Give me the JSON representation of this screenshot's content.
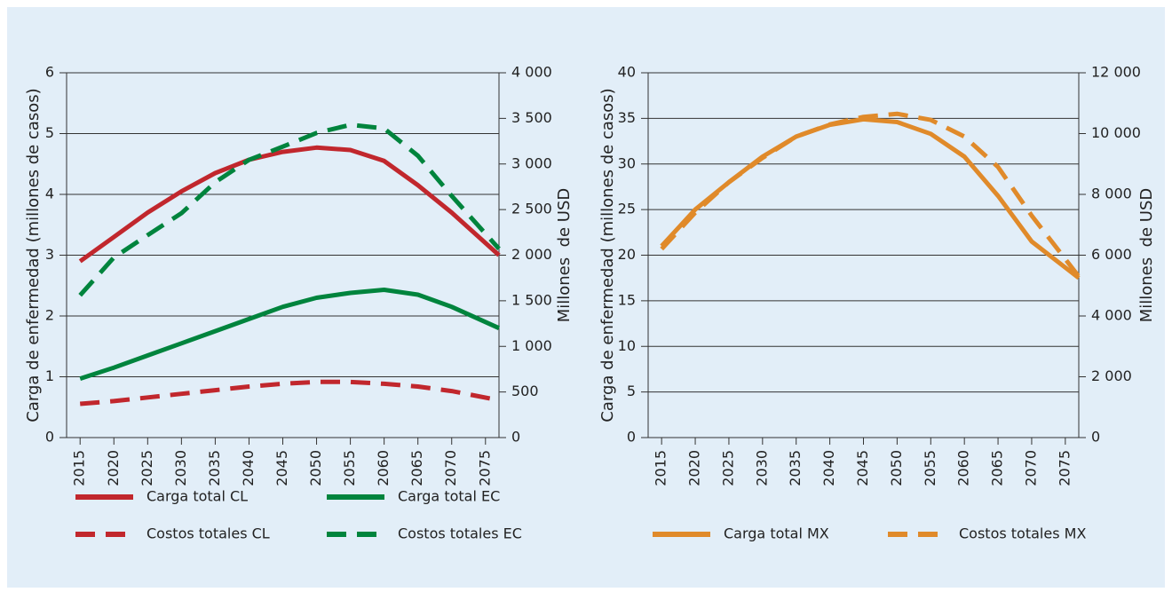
{
  "chart_data": [
    {
      "type": "line",
      "x": [
        2015,
        2020,
        2025,
        2030,
        2035,
        2040,
        2045,
        2050,
        2055,
        2060,
        2065,
        2070,
        2077
      ],
      "xlim": [
        2013,
        2077
      ],
      "xticks": [
        2015,
        2020,
        2025,
        2030,
        2035,
        2040,
        2045,
        2050,
        2055,
        2060,
        2065,
        2070,
        2075
      ],
      "ylabel": "Carga de enfermedad (millones de casos)",
      "y2label": "Millones  de USD",
      "ylim": [
        0,
        6
      ],
      "yticks": [
        0,
        1,
        2,
        3,
        4,
        5,
        6
      ],
      "y2lim": [
        0,
        4000
      ],
      "y2ticks": [
        0,
        500,
        {
          "value": 1000,
          "label": "1 000"
        },
        {
          "value": 1500,
          "label": "1 500"
        },
        {
          "value": 2000,
          "label": "2 000"
        },
        {
          "value": 2500,
          "label": "2 500"
        },
        {
          "value": 3000,
          "label": "3 000"
        },
        {
          "value": 3500,
          "label": "3 500"
        },
        {
          "value": 4000,
          "label": "4 000"
        }
      ],
      "grid": true,
      "series": [
        {
          "name": "Carga total CL",
          "color": "#c1272d",
          "dash": false,
          "values": [
            2.9,
            3.3,
            3.7,
            4.05,
            4.35,
            4.57,
            4.7,
            4.77,
            4.73,
            4.55,
            4.15,
            3.7,
            3.0
          ]
        },
        {
          "name": "Carga total EC",
          "color": "#00843d",
          "dash": false,
          "values": [
            0.97,
            1.15,
            1.35,
            1.55,
            1.75,
            1.95,
            2.15,
            2.3,
            2.38,
            2.43,
            2.35,
            2.15,
            1.8
          ]
        },
        {
          "name": "Costos totales CL",
          "color": "#c1272d",
          "dash": true,
          "axis": "y2",
          "values": [
            370,
            400,
            440,
            480,
            520,
            560,
            590,
            610,
            610,
            590,
            560,
            510,
            410
          ]
        },
        {
          "name": "Costos totales EC",
          "color": "#00843d",
          "dash": true,
          "axis": "y2",
          "values": [
            1560,
            1975,
            2220,
            2460,
            2800,
            3045,
            3190,
            3340,
            3430,
            3390,
            3090,
            2650,
            2070
          ]
        }
      ]
    },
    {
      "type": "line",
      "x": [
        2015,
        2020,
        2025,
        2030,
        2035,
        2040,
        2045,
        2050,
        2055,
        2060,
        2065,
        2070,
        2077
      ],
      "xlim": [
        2013,
        2077
      ],
      "xticks": [
        2015,
        2020,
        2025,
        2030,
        2035,
        2040,
        2045,
        2050,
        2055,
        2060,
        2065,
        2070,
        2075
      ],
      "ylabel": "Carga de enfermedad (millones de casos)",
      "y2label": "Millones  de USD",
      "ylim": [
        0,
        40
      ],
      "yticks": [
        0,
        5,
        10,
        15,
        20,
        25,
        30,
        35,
        40
      ],
      "y2lim": [
        0,
        12000
      ],
      "y2ticks": [
        0,
        {
          "value": 2000,
          "label": "2 000"
        },
        {
          "value": 4000,
          "label": "4 000"
        },
        {
          "value": 6000,
          "label": "6 000"
        },
        {
          "value": 8000,
          "label": "8 000"
        },
        {
          "value": 10000,
          "label": "10 000"
        },
        {
          "value": 12000,
          "label": "12 000"
        }
      ],
      "grid": true,
      "series": [
        {
          "name": "Carga total MX",
          "color": "#e08a2a",
          "dash": false,
          "values": [
            21,
            25,
            28,
            30.8,
            33,
            34.3,
            34.9,
            34.6,
            33.3,
            30.8,
            26.5,
            21.5,
            17.5
          ]
        },
        {
          "name": "Costos totales MX",
          "color": "#e08a2a",
          "dash": true,
          "axis": "y2",
          "values": [
            6200,
            7400,
            8400,
            9200,
            9900,
            10300,
            10550,
            10650,
            10450,
            9900,
            8900,
            7300,
            5300
          ]
        }
      ]
    }
  ]
}
